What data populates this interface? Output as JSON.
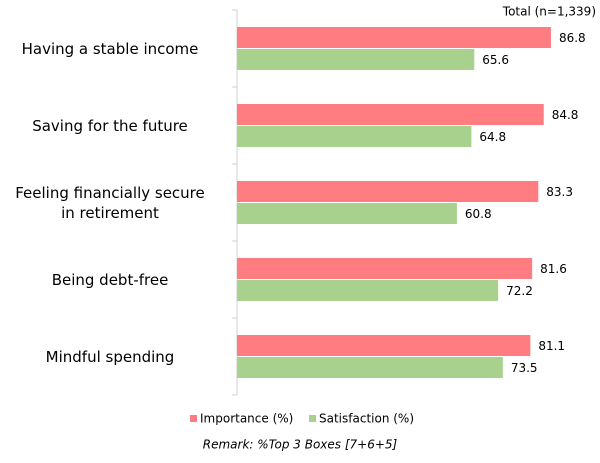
{
  "chart_data": {
    "type": "bar",
    "orientation": "horizontal",
    "note": "Total (n=1,339)",
    "remark": "Remark: %Top 3 Boxes [7+6+5]",
    "categories": [
      "Having a stable income",
      "Saving for the future",
      "Feeling financially secure\nin retirement",
      "Being debt-free",
      "Mindful spending"
    ],
    "series": [
      {
        "name": "Importance (%)",
        "color": "#ff7c80",
        "values": [
          86.8,
          84.8,
          83.3,
          81.6,
          81.1
        ]
      },
      {
        "name": "Satisfaction (%)",
        "color": "#a9d18e",
        "values": [
          65.6,
          64.8,
          60.8,
          72.2,
          73.5
        ]
      }
    ]
  }
}
